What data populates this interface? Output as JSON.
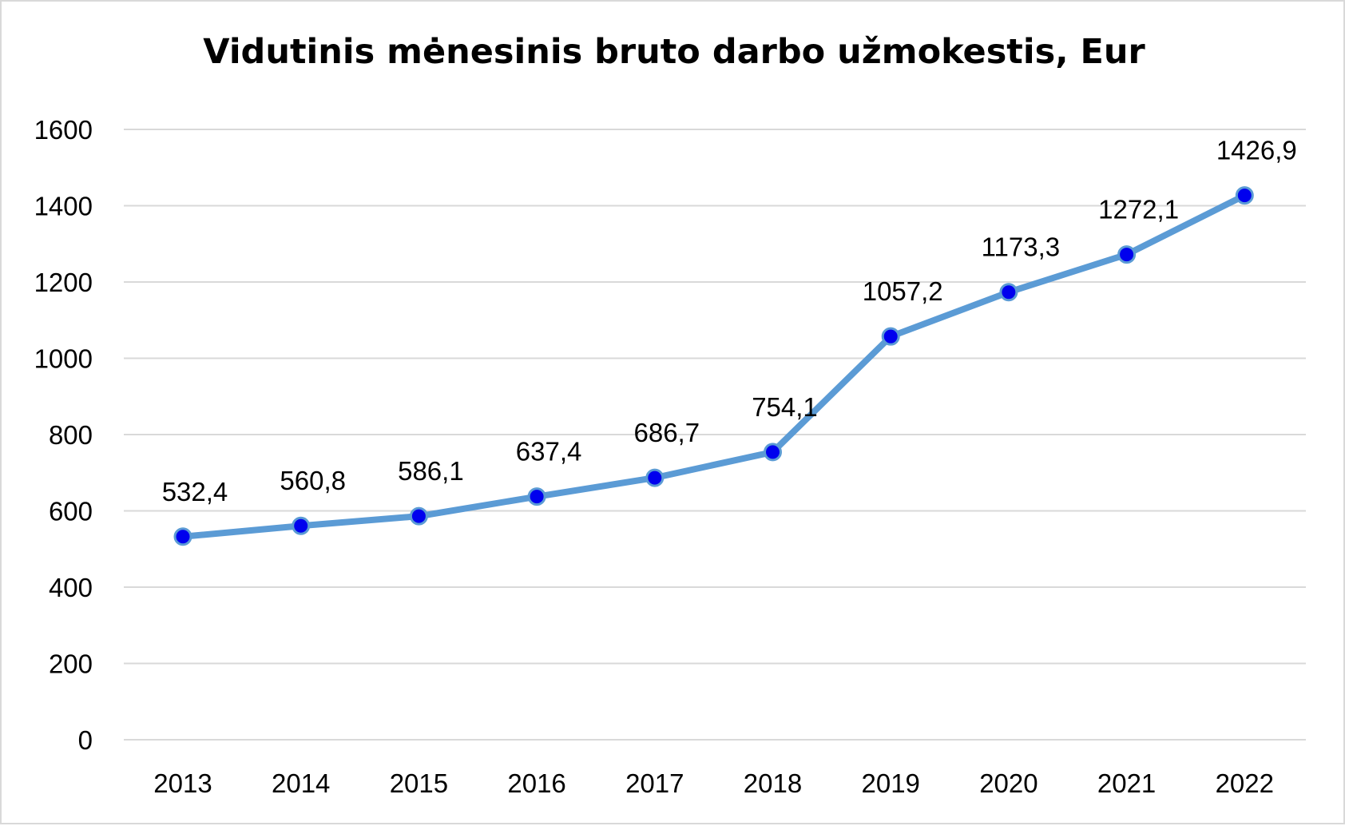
{
  "chart_data": {
    "type": "line",
    "title": "Vidutinis mėnesinis bruto darbo užmokestis, Eur",
    "xlabel": "",
    "ylabel": "",
    "categories": [
      "2013",
      "2014",
      "2015",
      "2016",
      "2017",
      "2018",
      "2019",
      "2020",
      "2021",
      "2022"
    ],
    "values": [
      532.4,
      560.8,
      586.1,
      637.4,
      686.7,
      754.1,
      1057.2,
      1173.3,
      1272.1,
      1426.9
    ],
    "data_labels": [
      "532,4",
      "560,8",
      "586,1",
      "637,4",
      "686,7",
      "754,1",
      "1057,2",
      "1173,3",
      "1272,1",
      "1426,9"
    ],
    "ylim": [
      0,
      1600
    ],
    "y_ticks": [
      "0",
      "200",
      "400",
      "600",
      "800",
      "1000",
      "1200",
      "1400",
      "1600"
    ],
    "grid": true,
    "legend": "none",
    "colors": {
      "line": "#5b9bd5",
      "marker_fill": "#0000ee",
      "marker_edge": "#5b9bd5",
      "grid": "#d9d9d9"
    }
  }
}
